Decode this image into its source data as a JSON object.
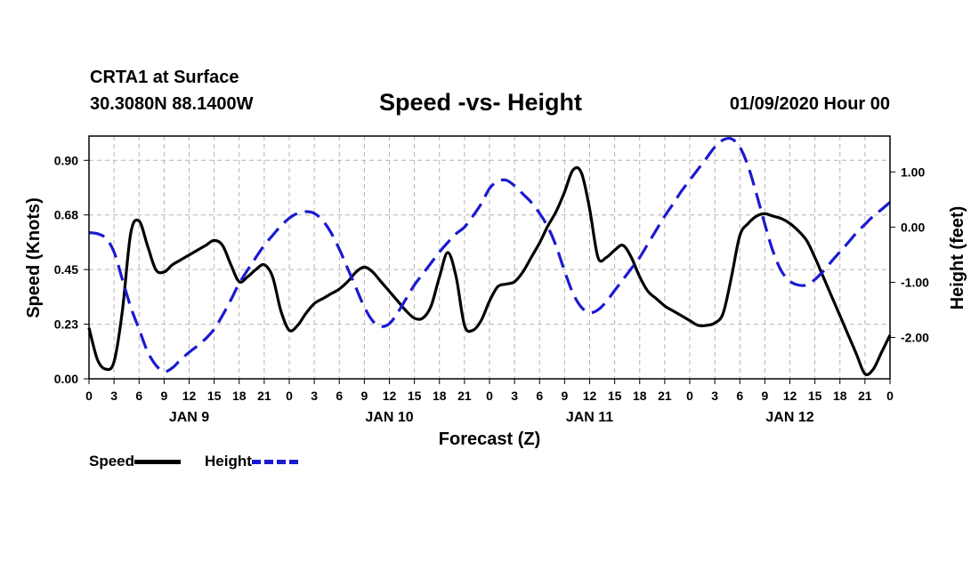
{
  "header": {
    "station": "CRTA1 at Surface",
    "coords": "30.3080N 88.1400W",
    "title": "Speed -vs- Height",
    "date": "01/09/2020 Hour 00"
  },
  "legend": {
    "speed_label": "Speed",
    "height_label": "Height"
  },
  "colors": {
    "speed": "#000000",
    "height": "#1a1ad0",
    "grid": "#b4b4b4"
  },
  "chart_data": {
    "type": "line",
    "xlabel": "Forecast (Z)",
    "ylabel_left": "Speed (Knots)",
    "ylabel_right": "Height (feet)",
    "x_range_hours": [
      0,
      96
    ],
    "x_tick_labels": [
      "0",
      "3",
      "6",
      "9",
      "12",
      "15",
      "18",
      "21",
      "0",
      "3",
      "6",
      "9",
      "12",
      "15",
      "18",
      "21",
      "0",
      "3",
      "6",
      "9",
      "12",
      "15",
      "18",
      "21",
      "0",
      "3",
      "6",
      "9",
      "12",
      "15",
      "18",
      "21",
      "0"
    ],
    "day_labels": [
      {
        "label": "JAN 9",
        "hour": 12
      },
      {
        "label": "JAN 10",
        "hour": 36
      },
      {
        "label": "JAN 11",
        "hour": 60
      },
      {
        "label": "JAN 12",
        "hour": 84
      }
    ],
    "ylim_left": [
      0,
      1.0
    ],
    "left_ticks": [
      {
        "value": 0.0,
        "label": "0.00"
      },
      {
        "value": 0.225,
        "label": "0.23"
      },
      {
        "value": 0.45,
        "label": "0.45"
      },
      {
        "value": 0.675,
        "label": "0.68"
      },
      {
        "value": 0.9,
        "label": "0.90"
      }
    ],
    "ylim_right": [
      -2.75,
      1.65
    ],
    "right_ticks": [
      {
        "value": -2.0,
        "label": "-2.00"
      },
      {
        "value": -1.0,
        "label": "-1.00"
      },
      {
        "value": 0.0,
        "label": "0.00"
      },
      {
        "value": 1.0,
        "label": "1.00"
      }
    ],
    "grid": true,
    "series": [
      {
        "name": "Speed",
        "axis": "left",
        "style": "solid",
        "points": [
          [
            0,
            0.21
          ],
          [
            1,
            0.08
          ],
          [
            2,
            0.04
          ],
          [
            3,
            0.07
          ],
          [
            4,
            0.28
          ],
          [
            5,
            0.6
          ],
          [
            6,
            0.65
          ],
          [
            7,
            0.55
          ],
          [
            8,
            0.45
          ],
          [
            9,
            0.44
          ],
          [
            10,
            0.47
          ],
          [
            11,
            0.49
          ],
          [
            12,
            0.51
          ],
          [
            13,
            0.53
          ],
          [
            14,
            0.55
          ],
          [
            15,
            0.57
          ],
          [
            16,
            0.55
          ],
          [
            17,
            0.47
          ],
          [
            18,
            0.4
          ],
          [
            19,
            0.42
          ],
          [
            20,
            0.45
          ],
          [
            21,
            0.47
          ],
          [
            22,
            0.42
          ],
          [
            23,
            0.28
          ],
          [
            24,
            0.2
          ],
          [
            25,
            0.22
          ],
          [
            26,
            0.27
          ],
          [
            27,
            0.31
          ],
          [
            28,
            0.33
          ],
          [
            29,
            0.35
          ],
          [
            30,
            0.37
          ],
          [
            31,
            0.4
          ],
          [
            32,
            0.44
          ],
          [
            33,
            0.46
          ],
          [
            34,
            0.44
          ],
          [
            35,
            0.4
          ],
          [
            36,
            0.36
          ],
          [
            37,
            0.32
          ],
          [
            38,
            0.28
          ],
          [
            39,
            0.25
          ],
          [
            40,
            0.25
          ],
          [
            41,
            0.3
          ],
          [
            42,
            0.42
          ],
          [
            43,
            0.52
          ],
          [
            44,
            0.42
          ],
          [
            45,
            0.22
          ],
          [
            46,
            0.2
          ],
          [
            47,
            0.24
          ],
          [
            48,
            0.32
          ],
          [
            49,
            0.38
          ],
          [
            50,
            0.39
          ],
          [
            51,
            0.4
          ],
          [
            52,
            0.44
          ],
          [
            53,
            0.5
          ],
          [
            54,
            0.56
          ],
          [
            55,
            0.63
          ],
          [
            56,
            0.69
          ],
          [
            57,
            0.77
          ],
          [
            58,
            0.86
          ],
          [
            59,
            0.85
          ],
          [
            60,
            0.7
          ],
          [
            61,
            0.5
          ],
          [
            62,
            0.5
          ],
          [
            63,
            0.53
          ],
          [
            64,
            0.55
          ],
          [
            65,
            0.5
          ],
          [
            66,
            0.42
          ],
          [
            67,
            0.36
          ],
          [
            68,
            0.33
          ],
          [
            69,
            0.3
          ],
          [
            70,
            0.28
          ],
          [
            71,
            0.26
          ],
          [
            72,
            0.24
          ],
          [
            73,
            0.22
          ],
          [
            74,
            0.22
          ],
          [
            75,
            0.23
          ],
          [
            76,
            0.27
          ],
          [
            77,
            0.42
          ],
          [
            78,
            0.59
          ],
          [
            79,
            0.64
          ],
          [
            80,
            0.67
          ],
          [
            81,
            0.68
          ],
          [
            82,
            0.67
          ],
          [
            83,
            0.66
          ],
          [
            84,
            0.64
          ],
          [
            85,
            0.61
          ],
          [
            86,
            0.57
          ],
          [
            87,
            0.5
          ],
          [
            88,
            0.42
          ],
          [
            89,
            0.34
          ],
          [
            90,
            0.26
          ],
          [
            91,
            0.18
          ],
          [
            92,
            0.1
          ],
          [
            93,
            0.02
          ],
          [
            94,
            0.04
          ],
          [
            95,
            0.11
          ],
          [
            96,
            0.18
          ]
        ]
      },
      {
        "name": "Height",
        "axis": "right",
        "style": "dashed",
        "points": [
          [
            0,
            -0.1
          ],
          [
            1,
            -0.12
          ],
          [
            2,
            -0.2
          ],
          [
            3,
            -0.45
          ],
          [
            4,
            -0.95
          ],
          [
            5,
            -1.45
          ],
          [
            6,
            -1.85
          ],
          [
            7,
            -2.25
          ],
          [
            8,
            -2.5
          ],
          [
            9,
            -2.62
          ],
          [
            10,
            -2.55
          ],
          [
            11,
            -2.4
          ],
          [
            12,
            -2.27
          ],
          [
            13,
            -2.15
          ],
          [
            14,
            -2.02
          ],
          [
            15,
            -1.85
          ],
          [
            16,
            -1.6
          ],
          [
            17,
            -1.32
          ],
          [
            18,
            -1.02
          ],
          [
            19,
            -0.78
          ],
          [
            20,
            -0.55
          ],
          [
            21,
            -0.33
          ],
          [
            22,
            -0.15
          ],
          [
            23,
            0.02
          ],
          [
            24,
            0.16
          ],
          [
            25,
            0.25
          ],
          [
            26,
            0.28
          ],
          [
            27,
            0.25
          ],
          [
            28,
            0.12
          ],
          [
            29,
            -0.1
          ],
          [
            30,
            -0.4
          ],
          [
            31,
            -0.75
          ],
          [
            32,
            -1.1
          ],
          [
            33,
            -1.45
          ],
          [
            34,
            -1.7
          ],
          [
            35,
            -1.8
          ],
          [
            36,
            -1.75
          ],
          [
            37,
            -1.55
          ],
          [
            38,
            -1.3
          ],
          [
            39,
            -1.05
          ],
          [
            40,
            -0.85
          ],
          [
            41,
            -0.65
          ],
          [
            42,
            -0.45
          ],
          [
            43,
            -0.28
          ],
          [
            44,
            -0.12
          ],
          [
            45,
            0.0
          ],
          [
            46,
            0.2
          ],
          [
            47,
            0.42
          ],
          [
            48,
            0.7
          ],
          [
            49,
            0.83
          ],
          [
            50,
            0.85
          ],
          [
            51,
            0.75
          ],
          [
            52,
            0.6
          ],
          [
            53,
            0.45
          ],
          [
            54,
            0.25
          ],
          [
            55,
            0.0
          ],
          [
            56,
            -0.35
          ],
          [
            57,
            -0.8
          ],
          [
            58,
            -1.2
          ],
          [
            59,
            -1.45
          ],
          [
            60,
            -1.55
          ],
          [
            61,
            -1.5
          ],
          [
            62,
            -1.35
          ],
          [
            63,
            -1.15
          ],
          [
            64,
            -0.95
          ],
          [
            65,
            -0.75
          ],
          [
            66,
            -0.55
          ],
          [
            67,
            -0.3
          ],
          [
            68,
            -0.05
          ],
          [
            69,
            0.2
          ],
          [
            70,
            0.42
          ],
          [
            71,
            0.65
          ],
          [
            72,
            0.85
          ],
          [
            73,
            1.05
          ],
          [
            74,
            1.25
          ],
          [
            75,
            1.45
          ],
          [
            76,
            1.58
          ],
          [
            77,
            1.6
          ],
          [
            78,
            1.45
          ],
          [
            79,
            1.1
          ],
          [
            80,
            0.6
          ],
          [
            81,
            0.05
          ],
          [
            82,
            -0.45
          ],
          [
            83,
            -0.8
          ],
          [
            84,
            -0.98
          ],
          [
            85,
            -1.05
          ],
          [
            86,
            -1.05
          ],
          [
            87,
            -0.95
          ],
          [
            88,
            -0.8
          ],
          [
            89,
            -0.62
          ],
          [
            90,
            -0.45
          ],
          [
            91,
            -0.28
          ],
          [
            92,
            -0.1
          ],
          [
            93,
            0.05
          ],
          [
            94,
            0.2
          ],
          [
            95,
            0.32
          ],
          [
            96,
            0.45
          ]
        ]
      }
    ]
  }
}
